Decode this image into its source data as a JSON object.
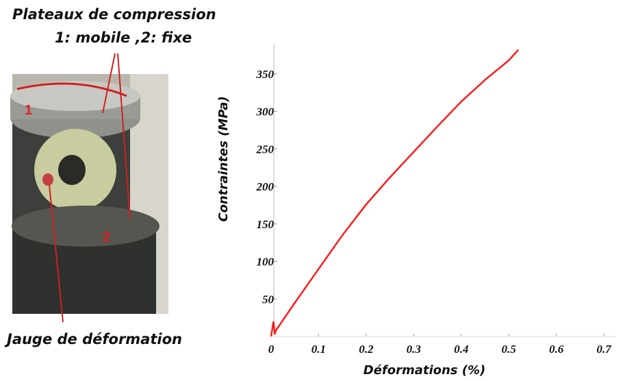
{
  "chart_data": {
    "type": "line",
    "annotations": [
      "Plateaux de compression",
      "1: mobile ,2: fixe",
      "Jauge de déformation"
    ],
    "photo_labels": [
      "1",
      "2"
    ],
    "xlabel": "Déformations (%)",
    "ylabel": "Contraintes (MPa)",
    "x": [
      0,
      0.005,
      0.008,
      0.01,
      0.05,
      0.1,
      0.15,
      0.2,
      0.25,
      0.3,
      0.35,
      0.4,
      0.45,
      0.5,
      0.52
    ],
    "series": [
      {
        "name": "Contraintes",
        "color": "#ff1a1a",
        "values": [
          0,
          20,
          3,
          8,
          45,
          90,
          135,
          176,
          212,
          246,
          280,
          313,
          342,
          368,
          382
        ]
      }
    ],
    "xlim": [
      0,
      0.7
    ],
    "xticks": [
      0,
      0.1,
      0.2,
      0.3,
      0.4,
      0.5,
      0.6,
      0.7
    ],
    "ylim": [
      0,
      390
    ],
    "yticks": [
      50,
      100,
      150,
      200,
      250,
      300,
      350
    ]
  }
}
